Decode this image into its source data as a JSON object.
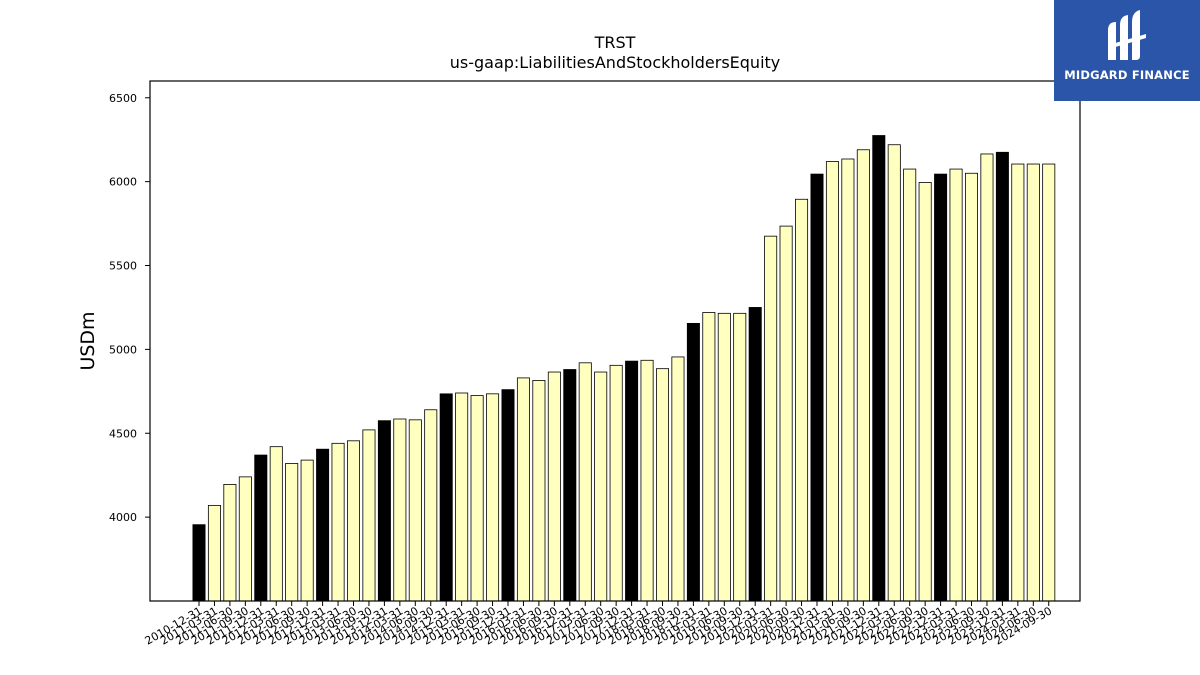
{
  "brand": {
    "name": "MIDGARD FINANCE",
    "background": "#2b55a8",
    "icon": "midgard-logo-icon"
  },
  "chart_data": {
    "type": "bar",
    "title": "TRST",
    "subtitle": "us-gaap:LiabilitiesAndStockholdersEquity",
    "ylabel": "USDm",
    "xlabel": "",
    "ylim": [
      3500,
      6600
    ],
    "yticks": [
      4000,
      4500,
      5000,
      5500,
      6000,
      6500
    ],
    "grid": false,
    "colors": {
      "q4": "#000000",
      "other": "#ffffc0",
      "edge": "#000000"
    },
    "categories": [
      "2010-12-31",
      "2011-03-31",
      "2011-06-30",
      "2011-09-30",
      "2011-12-31",
      "2012-03-31",
      "2012-06-30",
      "2012-09-30",
      "2012-12-31",
      "2013-03-31",
      "2013-06-30",
      "2013-09-30",
      "2013-12-31",
      "2014-03-31",
      "2014-06-30",
      "2014-09-30",
      "2014-12-31",
      "2015-03-31",
      "2015-06-30",
      "2015-09-30",
      "2015-12-31",
      "2016-03-31",
      "2016-06-30",
      "2016-09-30",
      "2016-12-31",
      "2017-03-31",
      "2017-06-30",
      "2017-09-30",
      "2017-12-31",
      "2018-03-31",
      "2018-06-30",
      "2018-09-30",
      "2018-12-31",
      "2019-03-31",
      "2019-06-30",
      "2019-09-30",
      "2019-12-31",
      "2020-03-31",
      "2020-06-30",
      "2020-09-30",
      "2020-12-31",
      "2021-03-31",
      "2021-06-30",
      "2021-09-30",
      "2021-12-31",
      "2022-03-31",
      "2022-06-30",
      "2022-09-30",
      "2022-12-31",
      "2023-03-31",
      "2023-06-30",
      "2023-09-30",
      "2023-12-31",
      "2024-03-31",
      "2024-06-30",
      "2024-09-30"
    ],
    "tick_labels": [
      "2010-12-31",
      "2011-03-31",
      "2011-06-30",
      "2011-09-30",
      "2011-12-31",
      "2012-03-31",
      "2012-06-30",
      "2012-09-30",
      "2012-12-31",
      "2013-03-31",
      "2013-06-30",
      "2013-09-30",
      "2013-12-31",
      "2014-03-31",
      "2014-06-30",
      "2014-09-30",
      "2014-12-31",
      "2015-03-31",
      "2015-06-30",
      "2015-09-30",
      "2015-12-31",
      "2016-03-31",
      "2016-06-30",
      "2016-09-30",
      "2016-12-31",
      "2017-03-31",
      "2017-06-30",
      "2017-09-30",
      "2017-12-31",
      "2018-03-31",
      "2018-06-30",
      "2018-09-30",
      "2018-12-31",
      "2019-03-31",
      "2019-06-30",
      "2019-09-30",
      "2019-12-31",
      "2020-03-31",
      "2020-06-30",
      "2020-09-30",
      "2020-12-31",
      "2021-03-31",
      "2021-06-30",
      "2021-09-30",
      "2021-12-31",
      "2022-03-31",
      "2022-06-30",
      "2022-09-30",
      "2022-12-31",
      "2023-03-31",
      "2023-06-30",
      "2023-09-30",
      "2023-12-31",
      "2024-03-31",
      "2024-06-30",
      "2024-09-30"
    ],
    "values": [
      3955,
      4070,
      4195,
      4240,
      4370,
      4420,
      4320,
      4340,
      4405,
      4440,
      4455,
      4520,
      4575,
      4585,
      4580,
      4640,
      4735,
      4740,
      4725,
      4735,
      4760,
      4830,
      4815,
      4865,
      4880,
      4920,
      4865,
      4905,
      4930,
      4935,
      4885,
      4955,
      5155,
      5220,
      5215,
      5215,
      5250,
      5675,
      5735,
      5895,
      6045,
      6120,
      6135,
      6190,
      6275,
      6220,
      6075,
      5995,
      6045,
      6075,
      6050,
      6165,
      6175,
      6105,
      6105,
      6105
    ]
  }
}
